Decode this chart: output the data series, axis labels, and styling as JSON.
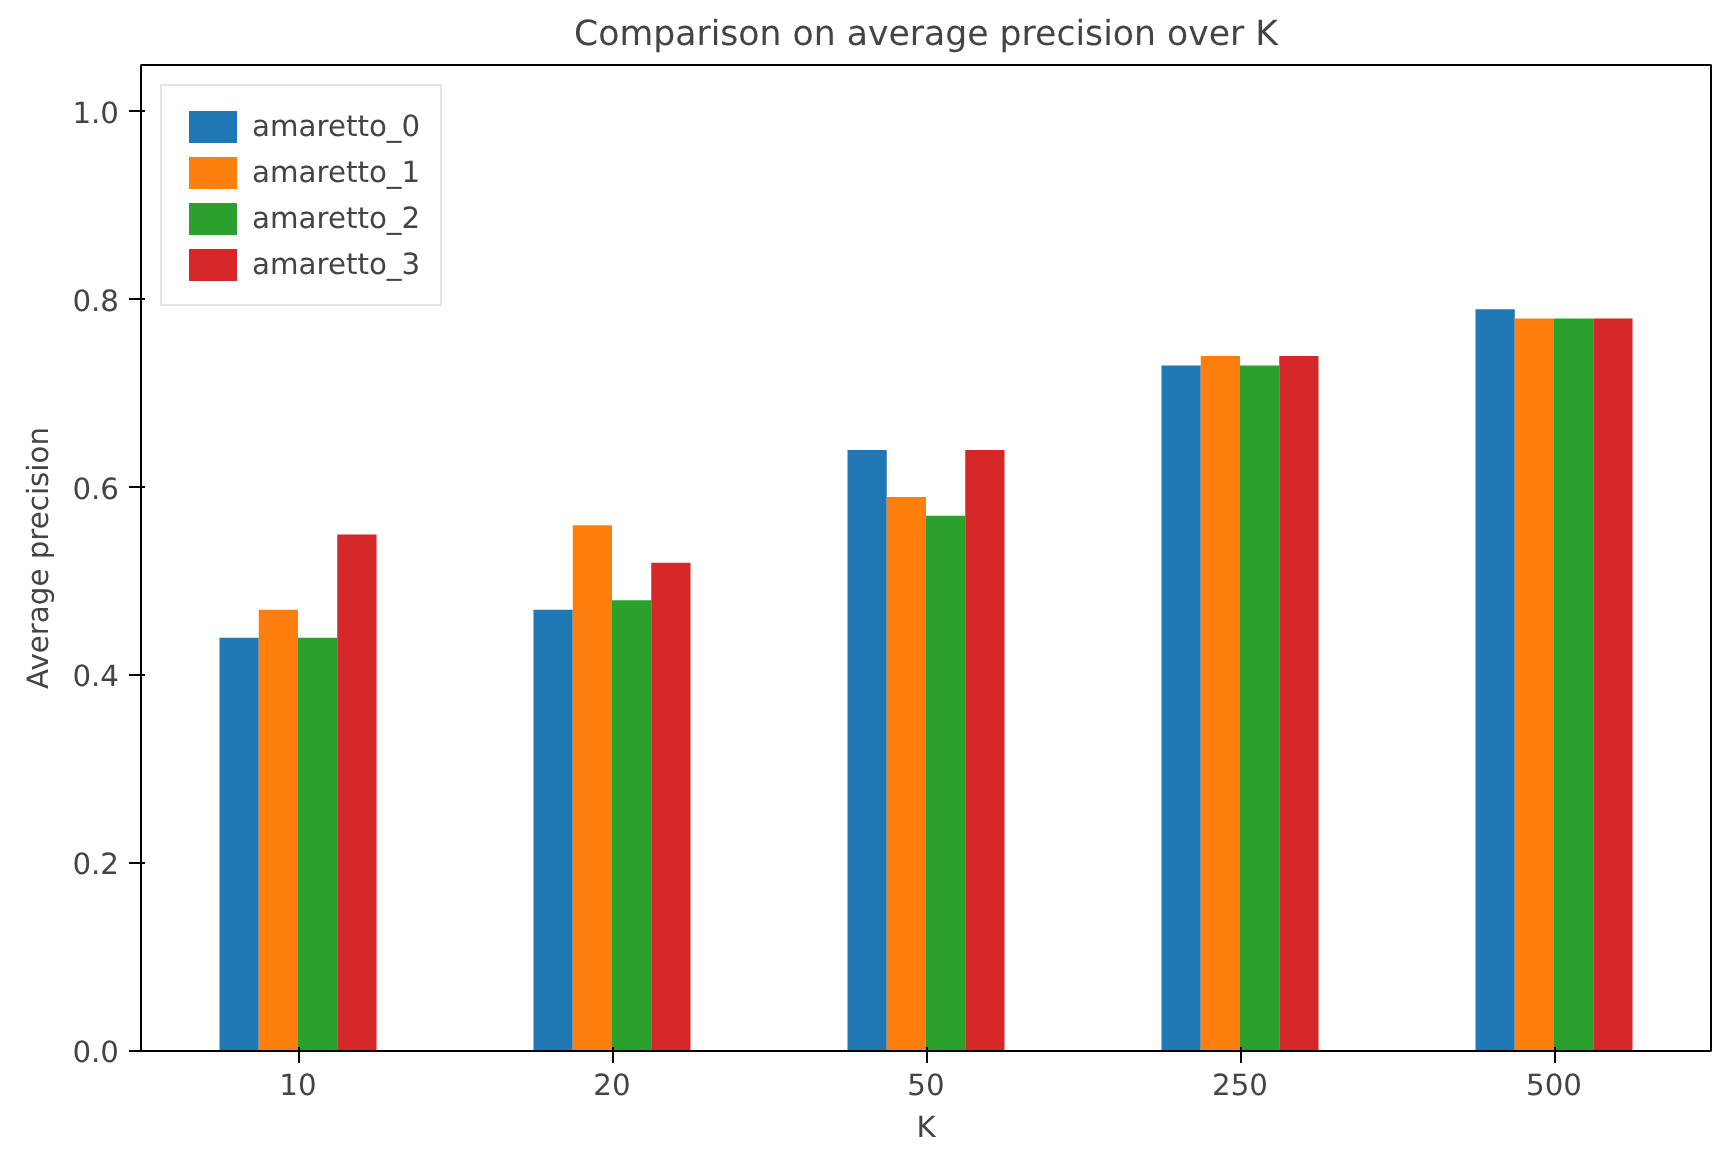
{
  "chart_data": {
    "type": "bar",
    "title": "Comparison on average precision over K",
    "xlabel": "K",
    "ylabel": "Average precision",
    "categories": [
      "10",
      "20",
      "50",
      "250",
      "500"
    ],
    "series": [
      {
        "name": "amaretto_0",
        "color": "#1f77b4",
        "values": [
          0.44,
          0.47,
          0.64,
          0.73,
          0.79
        ]
      },
      {
        "name": "amaretto_1",
        "color": "#ff7f0e",
        "values": [
          0.47,
          0.56,
          0.59,
          0.74,
          0.78
        ]
      },
      {
        "name": "amaretto_2",
        "color": "#2ca02c",
        "values": [
          0.44,
          0.48,
          0.57,
          0.73,
          0.78
        ]
      },
      {
        "name": "amaretto_3",
        "color": "#d62728",
        "values": [
          0.55,
          0.52,
          0.64,
          0.74,
          0.78
        ]
      }
    ],
    "ylim": [
      0,
      1.05
    ],
    "yticks": [
      {
        "value": 0,
        "label": "0.0"
      },
      0.2,
      0.4,
      0.6,
      0.8,
      {
        "value": 1,
        "label": "1.0"
      }
    ],
    "grid": false,
    "legend": "top left"
  }
}
